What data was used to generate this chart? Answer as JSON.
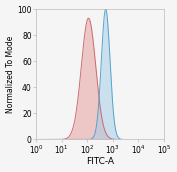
{
  "title": "",
  "xlabel": "FITC-A",
  "ylabel": "Normalized To Mode",
  "xlim_log": [
    0,
    5
  ],
  "ylim": [
    0,
    100
  ],
  "background_color": "#f5f5f5",
  "plot_bg_color": "#f5f5f5",
  "red_peak_log_mean": 2.05,
  "red_peak_log_std": 0.28,
  "red_peak_height": 93,
  "blue_peak_log_mean": 2.72,
  "blue_peak_log_std": 0.17,
  "blue_peak_height": 100,
  "red_fill_color": "#e8a0a0",
  "red_edge_color": "#c96060",
  "blue_fill_color": "#a0cce8",
  "blue_edge_color": "#4a9cc8",
  "tick_label_fontsize": 5.5,
  "axis_label_fontsize": 6.5,
  "ylabel_fontsize": 5.5,
  "n_points": 3000
}
